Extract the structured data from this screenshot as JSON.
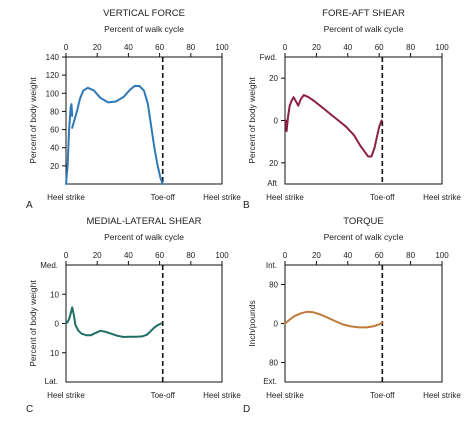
{
  "chart_data": [
    {
      "panel": "A",
      "type": "line",
      "title": "VERTICAL FORCE",
      "xlabel": "Percent of walk cycle",
      "ylabel": "Percent of body weight",
      "xlim": [
        0,
        100
      ],
      "ylim": [
        0,
        140
      ],
      "x_ticks": [
        "0",
        "20",
        "40",
        "60",
        "80",
        "100"
      ],
      "y_ticks": [
        "140",
        "120",
        "100",
        "80",
        "60",
        "40",
        "20"
      ],
      "y_ticks_values": [
        140,
        120,
        100,
        80,
        60,
        40,
        20
      ],
      "top_label": "",
      "bottom_label": "",
      "events": {
        "heel_strike": "Heel strike",
        "toe_off": "Toe-off",
        "heel_strike_2": "Heel strike"
      },
      "toe_off_x": 62,
      "line_color": "#2f79b8",
      "series": [
        {
          "x": [
            0,
            1,
            2,
            3,
            3.5,
            4
          ],
          "y": [
            0,
            20,
            60,
            85,
            88,
            75
          ]
        },
        {
          "x": [
            4,
            5,
            7,
            9,
            11,
            14,
            18,
            22,
            27,
            32,
            37,
            41,
            44,
            47,
            50,
            52.5,
            54.5,
            56.5,
            58.5,
            60.5,
            62
          ],
          "y": [
            62,
            68,
            80,
            94,
            103,
            106,
            103,
            95,
            90,
            91,
            96,
            104,
            108,
            108,
            103,
            88,
            65,
            42,
            22,
            7,
            0
          ]
        }
      ]
    },
    {
      "panel": "B",
      "type": "line",
      "title": "FORE-AFT SHEAR",
      "xlabel": "Percent of walk cycle",
      "ylabel": "Percent of body weight",
      "xlim": [
        0,
        100
      ],
      "ylim": [
        -30,
        30
      ],
      "x_ticks": [
        "0",
        "20",
        "40",
        "60",
        "80",
        "100"
      ],
      "y_ticks": [
        "20",
        "0",
        "20"
      ],
      "y_ticks_values": [
        20,
        0,
        -20
      ],
      "top_label": "Fwd.",
      "bottom_label": "Aft",
      "events": {
        "heel_strike": "Heel strike",
        "toe_off": "Toe-off",
        "heel_strike_2": "Heel strike"
      },
      "toe_off_x": 62,
      "line_color": "#8c2148",
      "series": [
        {
          "x": [
            0.5,
            1,
            2,
            3,
            4,
            5.5,
            7,
            8.5,
            10,
            12,
            15,
            19,
            24,
            29,
            34,
            39,
            44,
            48,
            51,
            53,
            55,
            57,
            58.5,
            60,
            61.5
          ],
          "y": [
            0,
            -5,
            2,
            7,
            9,
            11,
            9,
            7,
            10,
            12,
            11,
            9,
            6,
            3,
            0,
            -3,
            -7,
            -12,
            -15,
            -17,
            -17,
            -13,
            -8,
            -3,
            0
          ]
        }
      ]
    },
    {
      "panel": "C",
      "type": "line",
      "title": "MEDIAL-LATERAL SHEAR",
      "xlabel": "Percent of walk cycle",
      "ylabel": "Percent of body weight",
      "xlim": [
        0,
        100
      ],
      "ylim": [
        -20,
        20
      ],
      "x_ticks": [
        "0",
        "20",
        "40",
        "60",
        "80",
        "100"
      ],
      "y_ticks": [
        "10",
        "0",
        "10"
      ],
      "y_ticks_values": [
        10,
        0,
        -10
      ],
      "top_label": "Med.",
      "bottom_label": "Lat.",
      "events": {
        "heel_strike": "Heel strike",
        "toe_off": "Toe-off",
        "heel_strike_2": "Heel strike"
      },
      "toe_off_x": 62,
      "line_color": "#1f6e66",
      "series": [
        {
          "x": [
            0,
            1,
            2,
            3,
            4,
            5,
            6,
            8,
            10,
            13,
            16,
            19,
            22,
            25,
            29,
            33,
            37,
            41,
            45,
            49,
            52,
            54.5,
            57,
            59,
            61
          ],
          "y": [
            0,
            0.5,
            1.5,
            3.5,
            5.5,
            3,
            -0.5,
            -2.5,
            -3.5,
            -4,
            -4,
            -3.2,
            -2.5,
            -2.8,
            -3.5,
            -4.2,
            -4.6,
            -4.5,
            -4.5,
            -4.4,
            -3.8,
            -2.5,
            -1.2,
            -0.5,
            0
          ]
        }
      ]
    },
    {
      "panel": "D",
      "type": "line",
      "title": "TORQUE",
      "xlabel": "Percent of walk cycle",
      "ylabel": "Inch/pounds",
      "xlim": [
        0,
        100
      ],
      "ylim": [
        -120,
        120
      ],
      "x_ticks": [
        "0",
        "20",
        "40",
        "60",
        "80",
        "100"
      ],
      "y_ticks": [
        "80",
        "0",
        "80"
      ],
      "y_ticks_values": [
        80,
        0,
        -80
      ],
      "top_label": "Int.",
      "bottom_label": "Ext.",
      "events": {
        "heel_strike": "Heel strike",
        "toe_off": "Toe-off",
        "heel_strike_2": "Heel strike"
      },
      "toe_off_x": 62,
      "line_color": "#c07a3a",
      "series": [
        {
          "x": [
            0,
            3,
            6,
            10,
            14,
            18,
            22,
            27,
            32,
            37,
            42,
            47,
            52,
            56,
            59,
            61,
            62
          ],
          "y": [
            0,
            8,
            15,
            21,
            24,
            23,
            19,
            12,
            5,
            -2,
            -6,
            -8,
            -8,
            -6,
            -3,
            0,
            2
          ]
        }
      ]
    }
  ],
  "panel_letters": [
    "A",
    "B",
    "C",
    "D"
  ]
}
